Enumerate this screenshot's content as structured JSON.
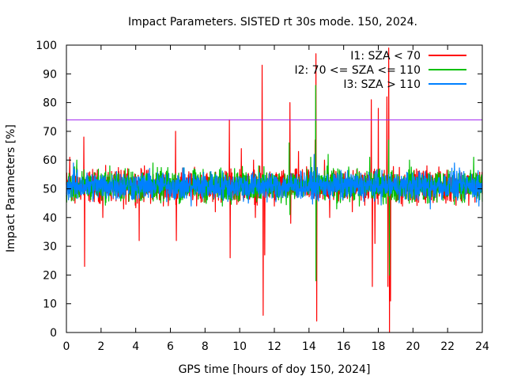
{
  "chart_data": {
    "type": "line",
    "title": "Impact Parameters. SISTED rt 30s mode. 150, 2024.",
    "xlabel": "GPS time [hours of doy 150, 2024]",
    "ylabel": "Impact Parameters [%]",
    "xlim": [
      0,
      24
    ],
    "ylim": [
      0,
      100
    ],
    "x_ticks": [
      0,
      2,
      4,
      6,
      8,
      10,
      12,
      14,
      16,
      18,
      20,
      22,
      24
    ],
    "y_ticks": [
      0,
      10,
      20,
      30,
      40,
      50,
      60,
      70,
      80,
      90,
      100
    ],
    "grid": false,
    "legend_position": "top-right",
    "reference_line": {
      "y": 74,
      "color": "#a020f0"
    },
    "series": [
      {
        "name": "I1: SZA < 70",
        "color": "#ff0000",
        "baseline": 51,
        "noise_amplitude": 5,
        "spikes": [
          {
            "x": 0.2,
            "y": 61
          },
          {
            "x": 0.5,
            "y": 45
          },
          {
            "x": 1.0,
            "y": 68
          },
          {
            "x": 1.05,
            "y": 23
          },
          {
            "x": 2.1,
            "y": 40
          },
          {
            "x": 3.3,
            "y": 43
          },
          {
            "x": 4.2,
            "y": 32
          },
          {
            "x": 4.5,
            "y": 58
          },
          {
            "x": 5.6,
            "y": 44
          },
          {
            "x": 6.3,
            "y": 70
          },
          {
            "x": 6.35,
            "y": 32
          },
          {
            "x": 8.6,
            "y": 42
          },
          {
            "x": 9.4,
            "y": 74
          },
          {
            "x": 9.45,
            "y": 26
          },
          {
            "x": 10.1,
            "y": 64
          },
          {
            "x": 10.8,
            "y": 60
          },
          {
            "x": 10.9,
            "y": 40
          },
          {
            "x": 11.3,
            "y": 93
          },
          {
            "x": 11.35,
            "y": 6
          },
          {
            "x": 11.45,
            "y": 27
          },
          {
            "x": 12.0,
            "y": 44
          },
          {
            "x": 12.9,
            "y": 80
          },
          {
            "x": 12.95,
            "y": 38
          },
          {
            "x": 13.4,
            "y": 63
          },
          {
            "x": 14.35,
            "y": 67
          },
          {
            "x": 14.4,
            "y": 97
          },
          {
            "x": 14.45,
            "y": 4
          },
          {
            "x": 14.9,
            "y": 60
          },
          {
            "x": 15.2,
            "y": 40
          },
          {
            "x": 16.5,
            "y": 42
          },
          {
            "x": 17.6,
            "y": 81
          },
          {
            "x": 17.65,
            "y": 16
          },
          {
            "x": 17.8,
            "y": 31
          },
          {
            "x": 18.0,
            "y": 78
          },
          {
            "x": 18.5,
            "y": 82
          },
          {
            "x": 18.55,
            "y": 16
          },
          {
            "x": 18.6,
            "y": 99
          },
          {
            "x": 18.65,
            "y": 0
          },
          {
            "x": 18.7,
            "y": 11
          },
          {
            "x": 19.4,
            "y": 44
          },
          {
            "x": 20.8,
            "y": 58
          },
          {
            "x": 21.9,
            "y": 45
          }
        ]
      },
      {
        "name": "I2: 70 <= SZA <= 110",
        "color": "#00c000",
        "baseline": 51,
        "noise_amplitude": 5,
        "spikes": [
          {
            "x": 0.6,
            "y": 60
          },
          {
            "x": 2.5,
            "y": 58
          },
          {
            "x": 5.0,
            "y": 59
          },
          {
            "x": 9.0,
            "y": 44
          },
          {
            "x": 11.1,
            "y": 58
          },
          {
            "x": 12.85,
            "y": 66
          },
          {
            "x": 12.9,
            "y": 41
          },
          {
            "x": 14.1,
            "y": 61
          },
          {
            "x": 14.38,
            "y": 86
          },
          {
            "x": 14.4,
            "y": 18
          },
          {
            "x": 14.42,
            "y": 40
          },
          {
            "x": 15.1,
            "y": 62
          },
          {
            "x": 15.6,
            "y": 43
          },
          {
            "x": 16.9,
            "y": 44
          },
          {
            "x": 17.5,
            "y": 61
          },
          {
            "x": 18.6,
            "y": 67
          },
          {
            "x": 18.65,
            "y": 20
          },
          {
            "x": 19.8,
            "y": 60
          },
          {
            "x": 23.5,
            "y": 61
          }
        ]
      },
      {
        "name": "I3: SZA > 110",
        "color": "#0080ff",
        "baseline": 51,
        "noise_amplitude": 4.5,
        "spikes": [
          {
            "x": 0.4,
            "y": 59
          },
          {
            "x": 2.9,
            "y": 56
          },
          {
            "x": 7.2,
            "y": 44
          },
          {
            "x": 10.5,
            "y": 45
          },
          {
            "x": 14.3,
            "y": 62
          },
          {
            "x": 21.0,
            "y": 43
          },
          {
            "x": 22.4,
            "y": 59
          },
          {
            "x": 23.8,
            "y": 44
          }
        ]
      }
    ]
  }
}
